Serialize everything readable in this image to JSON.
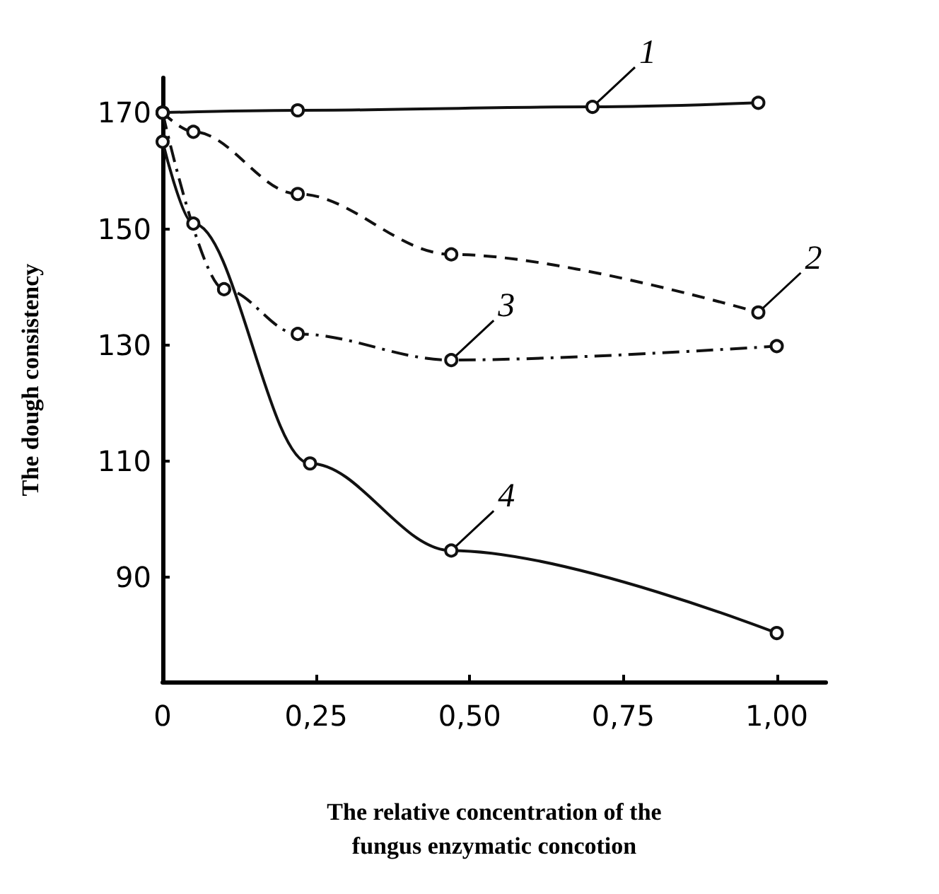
{
  "chart_data": {
    "type": "line",
    "xlabel": "The relative concentration of the\nfungus enzymatic concotion",
    "ylabel": "The dough consistency",
    "xlim": [
      0,
      1.08
    ],
    "xticks": [
      0,
      {
        "value": 0.25,
        "label": "0,25"
      },
      {
        "value": 0.5,
        "label": "0,50"
      },
      {
        "value": 0.75,
        "label": "0,75"
      },
      {
        "value": 1,
        "label": "1,00"
      }
    ],
    "ylim": [
      72,
      176
    ],
    "yticks": [
      90,
      110,
      130,
      150,
      170
    ],
    "series": [
      {
        "color": "#111111",
        "line_style": "solid",
        "x": [
          0,
          0.22,
          0.7,
          0.97
        ],
        "values": [
          170,
          170.4,
          171,
          171.7
        ]
      },
      {
        "color": "#111111",
        "line_style": "dashed",
        "x": [
          0,
          0.05,
          0.22,
          0.47,
          0.97
        ],
        "values": [
          170,
          166.7,
          156,
          145.6,
          135.6
        ]
      },
      {
        "color": "#111111",
        "line_style": "dashdot",
        "x": [
          0,
          0.1,
          0.22,
          0.47,
          1.0
        ],
        "values": [
          170,
          139.6,
          131.9,
          127.4,
          129.8
        ]
      },
      {
        "color": "#111111",
        "line_style": "solid",
        "x": [
          0,
          0.05,
          0.24,
          0.47,
          1.0
        ],
        "values": [
          165,
          150.9,
          109.6,
          94.6,
          80.4
        ]
      }
    ],
    "annotations": [
      {
        "text": "1",
        "x": 0.7,
        "y": 171
      },
      {
        "text": "2",
        "x": 0.97,
        "y": 135.6
      },
      {
        "text": "3",
        "x": 0.47,
        "y": 127.4
      },
      {
        "text": "4",
        "x": 0.47,
        "y": 94.6
      }
    ],
    "marker": "circle",
    "grid": false
  }
}
